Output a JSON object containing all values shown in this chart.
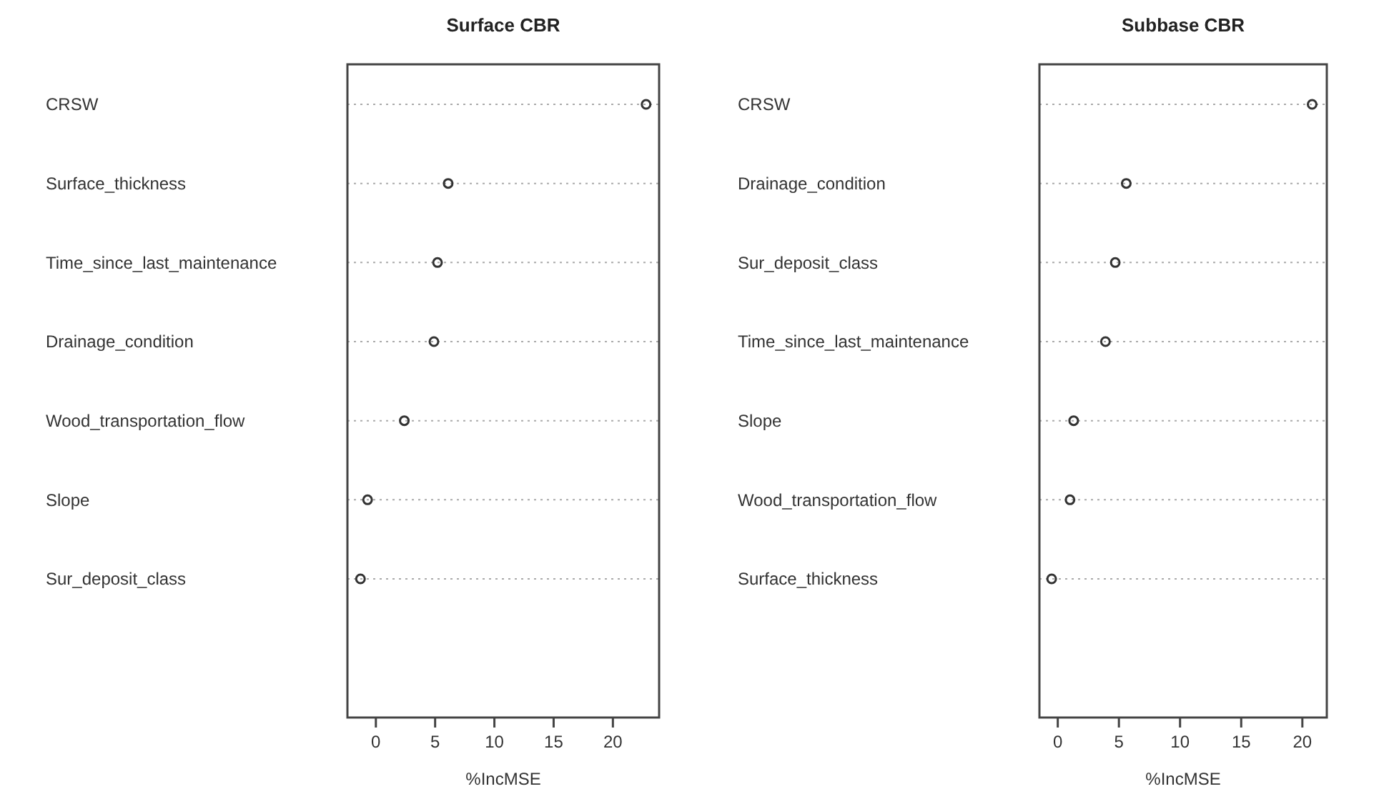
{
  "chart_data": [
    {
      "type": "scatter",
      "title": "Surface CBR",
      "xlabel": "%IncMSE",
      "orientation": "horizontal",
      "marker": "circle",
      "grid": "y",
      "color": "#333333",
      "categories": [
        "CRSW",
        "Surface_thickness",
        "Time_since_last_maintenance",
        "Drainage_condition",
        "Wood_transportation_flow",
        "Slope",
        "Sur_deposit_class"
      ],
      "values": [
        22.8,
        6.1,
        5.2,
        4.9,
        2.4,
        -0.7,
        -1.3
      ],
      "xlim": [
        -2.4,
        23.9
      ],
      "xticks": [
        0,
        5,
        10,
        15,
        20
      ]
    },
    {
      "type": "scatter",
      "title": "Subbase CBR",
      "xlabel": "%IncMSE",
      "orientation": "horizontal",
      "marker": "circle",
      "grid": "y",
      "color": "#333333",
      "categories": [
        "CRSW",
        "Drainage_condition",
        "Sur_deposit_class",
        "Time_since_last_maintenance",
        "Slope",
        "Wood_transportation_flow",
        "Surface_thickness"
      ],
      "values": [
        20.8,
        5.6,
        4.7,
        3.9,
        1.3,
        1.0,
        -0.5
      ],
      "xlim": [
        -1.5,
        22
      ],
      "xticks": [
        0,
        5,
        10,
        15,
        20
      ]
    }
  ]
}
